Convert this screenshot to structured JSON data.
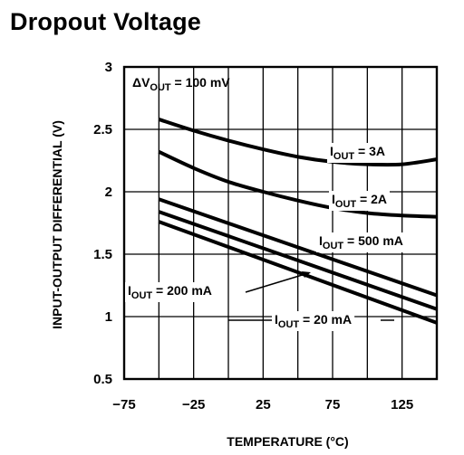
{
  "page": {
    "title": "Dropout Voltage"
  },
  "chart_data": {
    "type": "line",
    "title": "Dropout Voltage",
    "xlabel": "TEMPERATURE (°C)",
    "ylabel": "INPUT-OUTPUT DIFFERENTIAL (V)",
    "xlim": [
      -75,
      150
    ],
    "ylim": [
      0.5,
      3
    ],
    "xticks": [
      -75,
      -25,
      25,
      75,
      125
    ],
    "yticks": [
      0.5,
      1,
      1.5,
      2,
      2.5,
      3
    ],
    "xtick_labels": [
      "−75",
      "−25",
      "25",
      "75",
      "125"
    ],
    "ytick_labels": [
      "0.5",
      "1",
      "1.5",
      "2",
      "2.5",
      "3"
    ],
    "grid": true,
    "condition": {
      "prefix": "ΔV",
      "sub": "OUT",
      "suffix": " = 100 mV"
    },
    "series": [
      {
        "name": "IOUT = 3A",
        "label_main": "I",
        "label_sub": "OUT",
        "label_value": " = 3A",
        "x": [
          -50,
          -25,
          0,
          25,
          50,
          75,
          100,
          125,
          150
        ],
        "y": [
          2.58,
          2.49,
          2.41,
          2.34,
          2.28,
          2.24,
          2.22,
          2.22,
          2.26
        ]
      },
      {
        "name": "IOUT = 2A",
        "label_main": "I",
        "label_sub": "OUT",
        "label_value": " = 2A",
        "x": [
          -50,
          -25,
          0,
          25,
          50,
          75,
          100,
          125,
          150
        ],
        "y": [
          2.32,
          2.19,
          2.08,
          2.0,
          1.93,
          1.87,
          1.83,
          1.81,
          1.8
        ]
      },
      {
        "name": "IOUT = 500 mA",
        "label_main": "I",
        "label_sub": "OUT",
        "label_value": " = 500 mA",
        "x": [
          -50,
          150
        ],
        "y": [
          1.94,
          1.17
        ]
      },
      {
        "name": "IOUT = 200 mA",
        "label_main": "I",
        "label_sub": "OUT",
        "label_value": " = 200 mA",
        "x": [
          -50,
          150
        ],
        "y": [
          1.84,
          1.06
        ]
      },
      {
        "name": "IOUT = 20 mA",
        "label_main": "I",
        "label_sub": "OUT",
        "label_value": " = 20 mA",
        "x": [
          -50,
          150
        ],
        "y": [
          1.76,
          0.95
        ]
      }
    ]
  }
}
